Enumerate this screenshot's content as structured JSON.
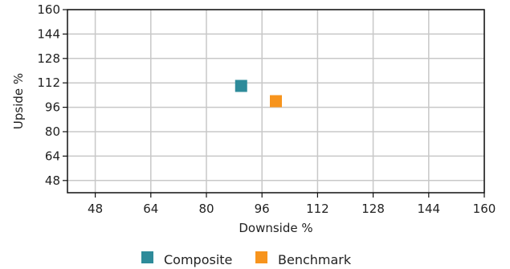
{
  "chart_data": {
    "type": "scatter",
    "xlabel": "Downside %",
    "ylabel": "Upside %",
    "xlim": [
      40,
      160
    ],
    "ylim": [
      40,
      160
    ],
    "x_ticks": [
      48,
      64,
      80,
      96,
      112,
      128,
      144,
      160
    ],
    "y_ticks": [
      48,
      64,
      80,
      96,
      112,
      128,
      144,
      160
    ],
    "grid": true,
    "legend_position": "bottom",
    "series": [
      {
        "name": "Composite",
        "color": "#2e8b9a",
        "marker": "square",
        "points": [
          {
            "x": 90,
            "y": 110
          }
        ]
      },
      {
        "name": "Benchmark",
        "color": "#f7941d",
        "marker": "square",
        "points": [
          {
            "x": 100,
            "y": 100
          }
        ]
      }
    ]
  }
}
